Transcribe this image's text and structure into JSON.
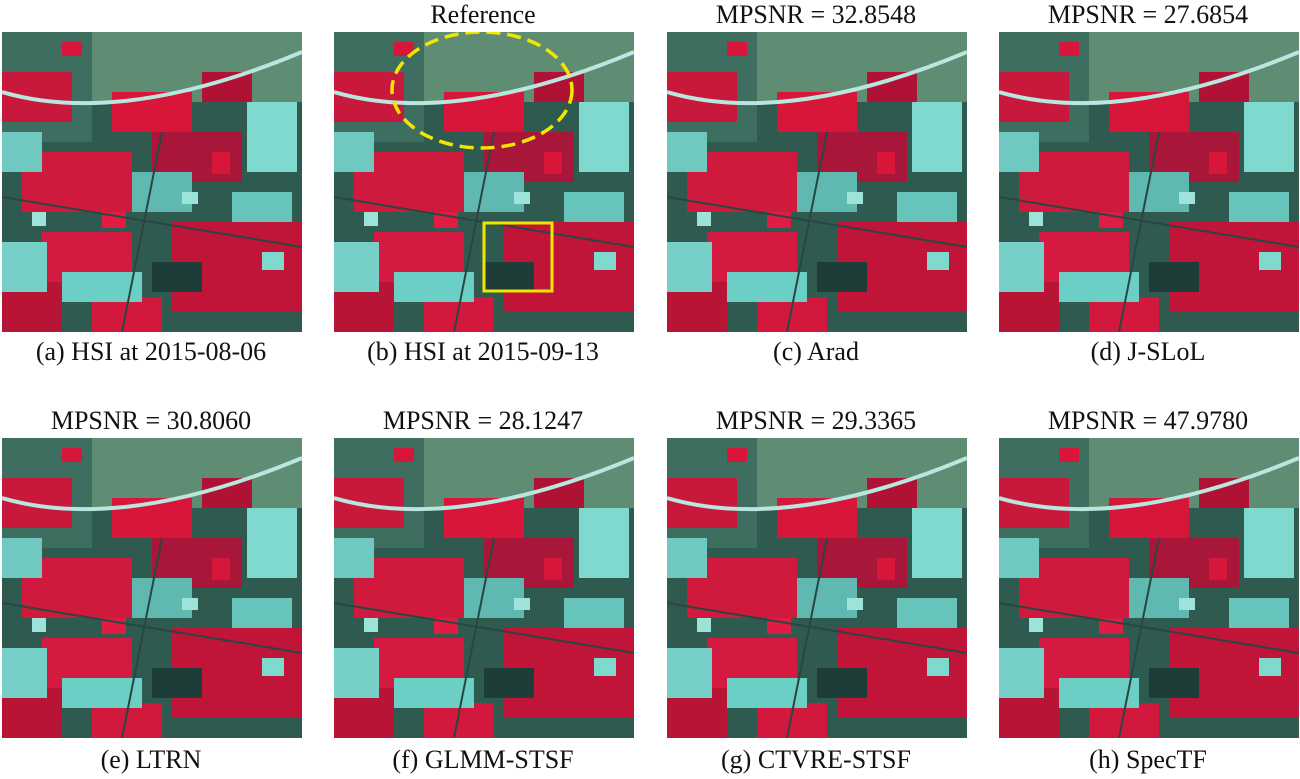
{
  "panels": [
    {
      "title": "",
      "caption": "(a) HSI at 2015-08-06"
    },
    {
      "title": "Reference",
      "caption": "(b) HSI at 2015-09-13"
    },
    {
      "title": "MPSNR = 32.8548",
      "caption": "(c) Arad"
    },
    {
      "title": "MPSNR = 27.6854",
      "caption": "(d) J-SLoL"
    },
    {
      "title": "MPSNR = 30.8060",
      "caption": "(e) LTRN"
    },
    {
      "title": "MPSNR = 28.1247",
      "caption": "(f) GLMM-STSF"
    },
    {
      "title": "MPSNR = 29.3365",
      "caption": "(g) CTVRE-STSF"
    },
    {
      "title": "MPSNR = 47.9780",
      "caption": "(h) SpecTF"
    }
  ],
  "colors": {
    "vegetation_red": "#d8163a",
    "urban_cyan": "#6fd3c9",
    "dark_teal": "#1e3d38",
    "mid_green": "#4f7d63",
    "highlight_yellow": "#f2e600"
  }
}
